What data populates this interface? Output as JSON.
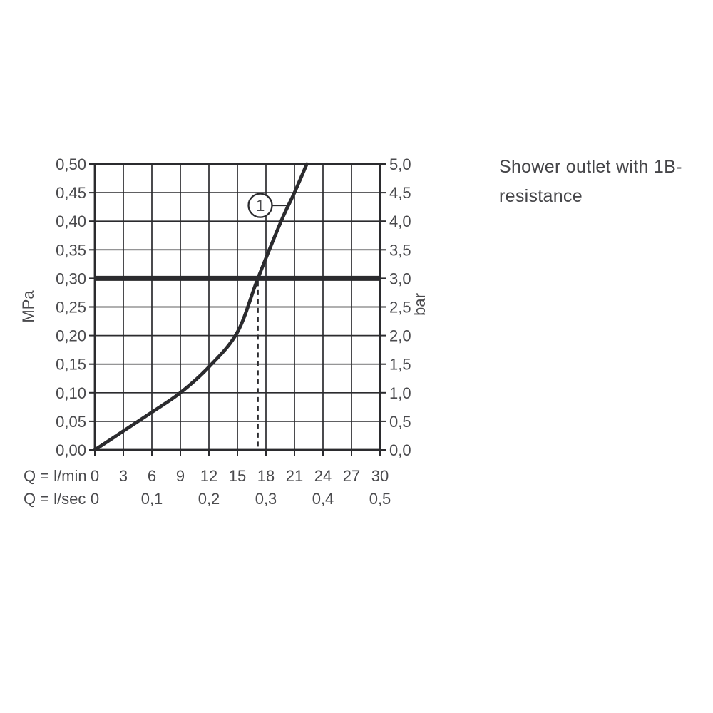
{
  "title": {
    "line1": "Shower outlet with 1B-",
    "line2": "resistance"
  },
  "colors": {
    "line": "#2b2b2e",
    "text": "#4a4a4d",
    "background": "#ffffff"
  },
  "chart_data": {
    "type": "line",
    "title": "Shower outlet with 1B- resistance",
    "grid": "on",
    "x_axis": {
      "range_lmin": [
        0,
        30
      ],
      "gridline_step_lmin": 3,
      "rows": [
        {
          "label": "Q = l/min",
          "ticks": [
            "0",
            "3",
            "6",
            "9",
            "12",
            "15",
            "18",
            "21",
            "24",
            "27",
            "30"
          ],
          "positions_lmin": [
            0,
            3,
            6,
            9,
            12,
            15,
            18,
            21,
            24,
            27,
            30
          ]
        },
        {
          "label": "Q = l/sec",
          "ticks": [
            "0",
            "0,1",
            "0,2",
            "0,3",
            "0,4",
            "0,5"
          ],
          "positions_lmin": [
            0,
            6,
            12,
            18,
            24,
            30
          ]
        }
      ]
    },
    "y_axis_left": {
      "label": "MPa",
      "range": [
        0,
        0.5
      ],
      "step": 0.05,
      "ticks_top_to_bottom": [
        "0,50",
        "0,45",
        "0,40",
        "0,35",
        "0,30",
        "0,25",
        "0,20",
        "0,15",
        "0,10",
        "0,05",
        "0,00"
      ]
    },
    "y_axis_right": {
      "label": "bar",
      "range": [
        0,
        5
      ],
      "step": 0.5,
      "ticks_top_to_bottom": [
        "5,0",
        "4,5",
        "4,0",
        "3,5",
        "3,0",
        "2,5",
        "2,0",
        "1,5",
        "1,0",
        "0,5",
        "0,0"
      ]
    },
    "series": [
      {
        "name": "1",
        "points_lmin_mpa": [
          [
            0,
            0.0
          ],
          [
            3,
            0.033
          ],
          [
            6,
            0.066
          ],
          [
            9,
            0.1
          ],
          [
            12,
            0.145
          ],
          [
            15,
            0.206
          ],
          [
            17.15,
            0.3
          ],
          [
            19.6,
            0.4
          ],
          [
            21,
            0.45
          ],
          [
            22.3,
            0.5
          ]
        ]
      }
    ],
    "reference_line_mpa": 0.3,
    "dashed_guide": {
      "at_lmin": 17.15,
      "from_mpa": 0.0,
      "to_mpa": 0.3
    },
    "callout": {
      "label": "1",
      "center_lmin": 17.4,
      "center_mpa": 0.4275,
      "leader_end_lmin": 20.5,
      "leader_end_mpa": 0.4275
    }
  }
}
